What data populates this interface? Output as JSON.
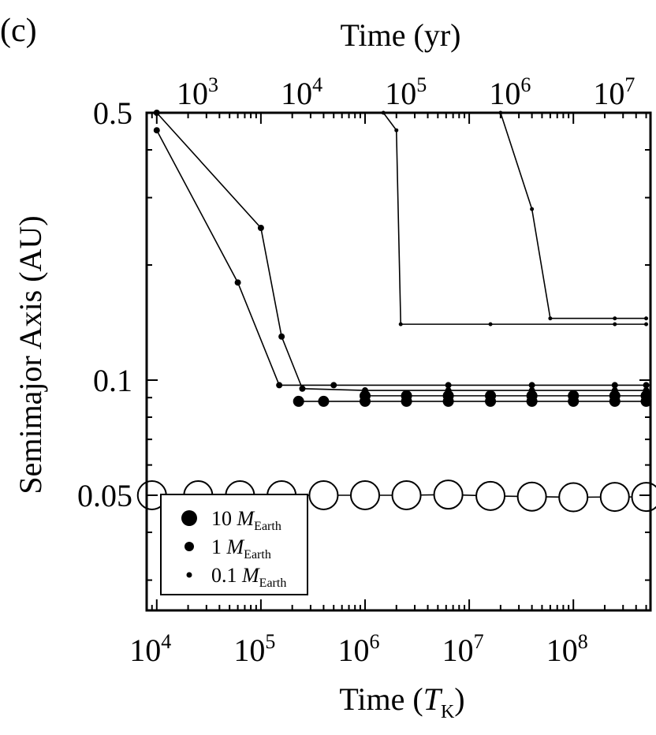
{
  "panel_label": "(c)",
  "legend": [
    {
      "num": "10",
      "unit_main": "M",
      "unit_sub": "Earth",
      "size": "10"
    },
    {
      "num": "1",
      "unit_main": "M",
      "unit_sub": "Earth",
      "size": "1"
    },
    {
      "num": "0.1",
      "unit_main": "M",
      "unit_sub": "Earth",
      "size": "0.1"
    }
  ],
  "chart_data": {
    "type": "line",
    "title": "",
    "xlabel_bottom": "Time (T_K)",
    "xlabel_bottom_main": "Time (",
    "xlabel_bottom_var": "T",
    "xlabel_bottom_sub": "K",
    "xlabel_bottom_close": ")",
    "xlabel_top": "Time (yr)",
    "ylabel": "Semimajor Axis (AU)",
    "x_scale": "log",
    "y_scale": "log",
    "xlim": [
      8000,
      550000000
    ],
    "ylim": [
      0.025,
      0.5
    ],
    "grid": false,
    "legend_position": "bottom-left",
    "x_bottom_ticks": [
      {
        "value": 10000,
        "base": "10",
        "exp": "4"
      },
      {
        "value": 100000,
        "base": "10",
        "exp": "5"
      },
      {
        "value": 1000000,
        "base": "10",
        "exp": "6"
      },
      {
        "value": 10000000,
        "base": "10",
        "exp": "7"
      },
      {
        "value": 100000000,
        "base": "10",
        "exp": "8"
      }
    ],
    "x_top_ticks": [
      {
        "value_yr": 1000,
        "base": "10",
        "exp": "3"
      },
      {
        "value_yr": 10000,
        "base": "10",
        "exp": "4"
      },
      {
        "value_yr": 100000,
        "base": "10",
        "exp": "5"
      },
      {
        "value_yr": 1000000,
        "base": "10",
        "exp": "6"
      },
      {
        "value_yr": 10000000,
        "base": "10",
        "exp": "7"
      }
    ],
    "top_axis_yr_per_TK": 0.0353,
    "y_ticks": [
      {
        "value": 0.5,
        "label": "0.5"
      },
      {
        "value": 0.1,
        "label": "0.1"
      },
      {
        "value": 0.05,
        "label": "0.05"
      }
    ],
    "series": [
      {
        "name": "",
        "mass": 10,
        "x": [
          9000,
          25000,
          63000,
          158000,
          400000,
          1000000,
          2500000,
          6300000,
          16000000,
          40000000,
          100000000,
          250000000,
          500000000
        ],
        "y": [
          0.05,
          0.05,
          0.05,
          0.05,
          0.05,
          0.05,
          0.05,
          0.0502,
          0.0498,
          0.0496,
          0.0494,
          0.0495,
          0.0495
        ]
      },
      {
        "name": "",
        "mass": 10,
        "x": [
          230000,
          400000,
          1000000,
          2500000,
          6300000,
          16000000,
          40000000,
          100000000,
          250000000,
          500000000
        ],
        "y": [
          0.088,
          0.088,
          0.088,
          0.088,
          0.088,
          0.088,
          0.088,
          0.088,
          0.088,
          0.088
        ]
      },
      {
        "name": "",
        "mass": 10,
        "x": [
          1000000,
          2500000,
          6300000,
          16000000,
          40000000,
          100000000,
          250000000,
          500000000
        ],
        "y": [
          0.091,
          0.091,
          0.091,
          0.091,
          0.091,
          0.091,
          0.091,
          0.091
        ]
      },
      {
        "name": "",
        "mass": 1,
        "x": [
          10000,
          100000,
          158000,
          250000,
          1000000,
          6300000,
          40000000,
          250000000,
          500000000
        ],
        "y": [
          0.5,
          0.25,
          0.13,
          0.095,
          0.094,
          0.094,
          0.094,
          0.094,
          0.094
        ]
      },
      {
        "name": "",
        "mass": 1,
        "x": [
          10000,
          60000,
          150000,
          500000,
          6300000,
          40000000,
          250000000,
          500000000
        ],
        "y": [
          0.45,
          0.18,
          0.097,
          0.097,
          0.097,
          0.097,
          0.097,
          0.097
        ]
      },
      {
        "name": "",
        "mass": 0.1,
        "x": [
          1500000,
          2000000,
          2200000,
          16000000,
          250000000,
          500000000
        ],
        "y": [
          0.5,
          0.45,
          0.14,
          0.14,
          0.14,
          0.14
        ]
      },
      {
        "name": "",
        "mass": 0.1,
        "x": [
          20000000,
          40000000,
          60000000,
          250000000,
          500000000
        ],
        "y": [
          0.5,
          0.28,
          0.145,
          0.145,
          0.145
        ]
      }
    ]
  }
}
